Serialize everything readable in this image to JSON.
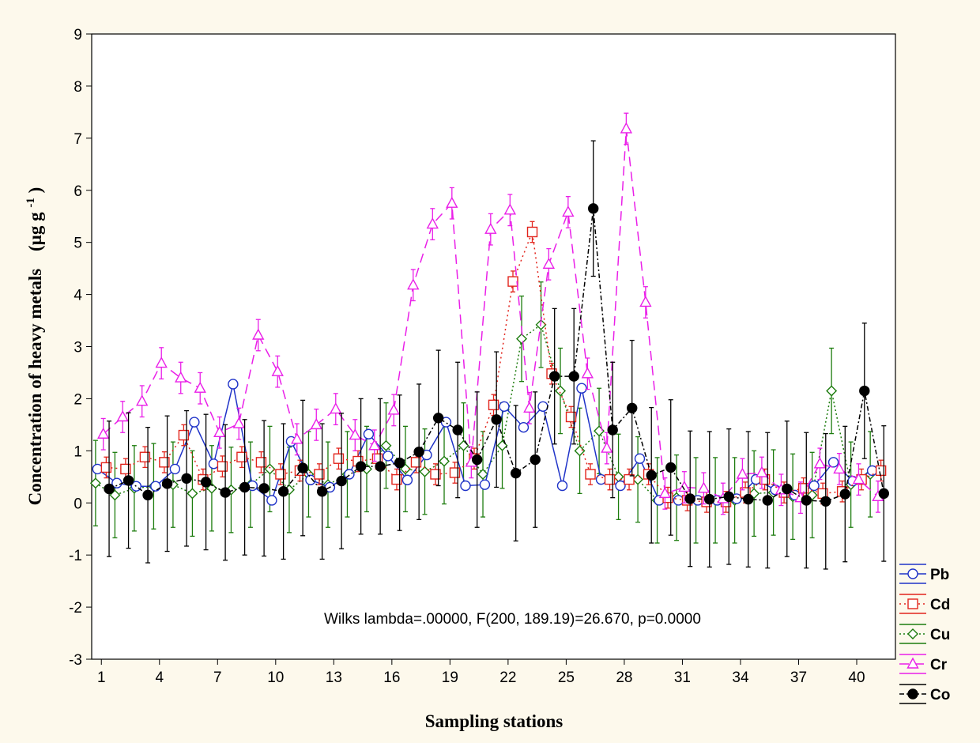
{
  "chart_data": {
    "type": "line",
    "title": "",
    "xlabel": "Sampling stations",
    "ylabel_main": "Concentration of heavy metals",
    "ylabel_unit": "(µg g",
    "ylabel_unit_sup": "-1",
    "ylabel_unit_close": ")",
    "xlim": [
      0.5,
      42
    ],
    "ylim": [
      -3,
      9
    ],
    "yticks": [
      -3,
      -2,
      -1,
      0,
      1,
      2,
      3,
      4,
      5,
      6,
      7,
      8,
      9
    ],
    "xticks": [
      1,
      4,
      7,
      10,
      13,
      16,
      19,
      22,
      25,
      28,
      31,
      34,
      37,
      40
    ],
    "legend_position": "right",
    "annotation": "Wilks lambda=.00000, F(200, 189.19)=26.670, p=0.0000",
    "series": [
      {
        "name": "Pb",
        "color": "#1f33c8",
        "dash": "",
        "marker": "circle-open",
        "offset": -0.2,
        "err": 0.08,
        "values": [
          0.65,
          0.38,
          0.32,
          0.32,
          0.65,
          1.55,
          0.75,
          2.28,
          0.33,
          0.05,
          1.18,
          0.44,
          0.3,
          0.55,
          1.32,
          0.9,
          0.44,
          0.92,
          1.55,
          0.33,
          0.35,
          1.85,
          1.45,
          1.85,
          0.33,
          2.2,
          0.45,
          0.33,
          0.85,
          0.05,
          0.05,
          0.05,
          0.05,
          0.08,
          0.45,
          0.25,
          0.15,
          0.33,
          0.78,
          0.42,
          0.62
        ]
      },
      {
        "name": "Cd",
        "color": "#e2241c",
        "dash": "2 4",
        "marker": "square-open",
        "offset": 0.25,
        "err": 0.2,
        "values": [
          0.68,
          0.65,
          0.88,
          0.78,
          1.3,
          0.45,
          0.7,
          0.88,
          0.78,
          0.55,
          0.62,
          0.55,
          0.85,
          0.8,
          0.85,
          0.45,
          0.78,
          0.55,
          0.58,
          0.85,
          1.88,
          4.25,
          5.2,
          2.48,
          1.65,
          0.55,
          0.45,
          0.45,
          0.55,
          0.1,
          0.05,
          0.02,
          0.02,
          0.2,
          0.45,
          0.2,
          0.28,
          0.18,
          0.22,
          0.45,
          0.62
        ]
      },
      {
        "name": "Cu",
        "color": "#1d7c0e",
        "dash": "2 3",
        "marker": "diamond-open",
        "offset": -0.3,
        "err": 0.82,
        "values": [
          0.38,
          0.15,
          0.28,
          0.32,
          0.35,
          0.18,
          0.28,
          0.25,
          0.35,
          0.65,
          0.25,
          0.55,
          0.35,
          0.55,
          0.65,
          1.1,
          0.65,
          0.6,
          0.8,
          1.1,
          0.55,
          1.1,
          3.15,
          3.42,
          2.15,
          1.0,
          1.38,
          0.5,
          0.45,
          0.05,
          0.1,
          0.05,
          0.05,
          0.05,
          0.18,
          0.2,
          0.12,
          0.15,
          2.15,
          0.35,
          0.55
        ]
      },
      {
        "name": "Cr",
        "color": "#ea1fe8",
        "dash": "12 7",
        "marker": "triangle-open",
        "offset": 0.1,
        "err": 0.3,
        "values": [
          1.32,
          1.65,
          1.95,
          2.68,
          2.4,
          2.2,
          1.35,
          1.52,
          3.22,
          2.52,
          1.22,
          1.5,
          1.8,
          1.3,
          1.1,
          1.78,
          4.18,
          5.35,
          5.75,
          0.78,
          5.25,
          5.62,
          1.82,
          4.58,
          5.58,
          2.48,
          1.05,
          7.18,
          3.85,
          0.18,
          0.3,
          0.28,
          0.08,
          0.55,
          0.58,
          0.25,
          0.1,
          0.75,
          0.65,
          0.45,
          0.12
        ]
      },
      {
        "name": "Co",
        "color": "#000000",
        "dash": "6 3 2 3",
        "marker": "circle-filled",
        "offset": 0.4,
        "err": 1.3,
        "values": [
          0.27,
          0.43,
          0.15,
          0.37,
          0.47,
          0.4,
          0.2,
          0.3,
          0.28,
          0.22,
          0.67,
          0.22,
          0.42,
          0.7,
          0.7,
          0.77,
          0.98,
          1.63,
          1.4,
          0.83,
          1.6,
          0.57,
          0.83,
          2.43,
          2.43,
          5.65,
          1.4,
          1.82,
          0.53,
          0.68,
          0.08,
          0.07,
          0.12,
          0.07,
          0.05,
          0.27,
          0.05,
          0.03,
          0.17,
          2.15,
          0.18
        ]
      }
    ]
  }
}
